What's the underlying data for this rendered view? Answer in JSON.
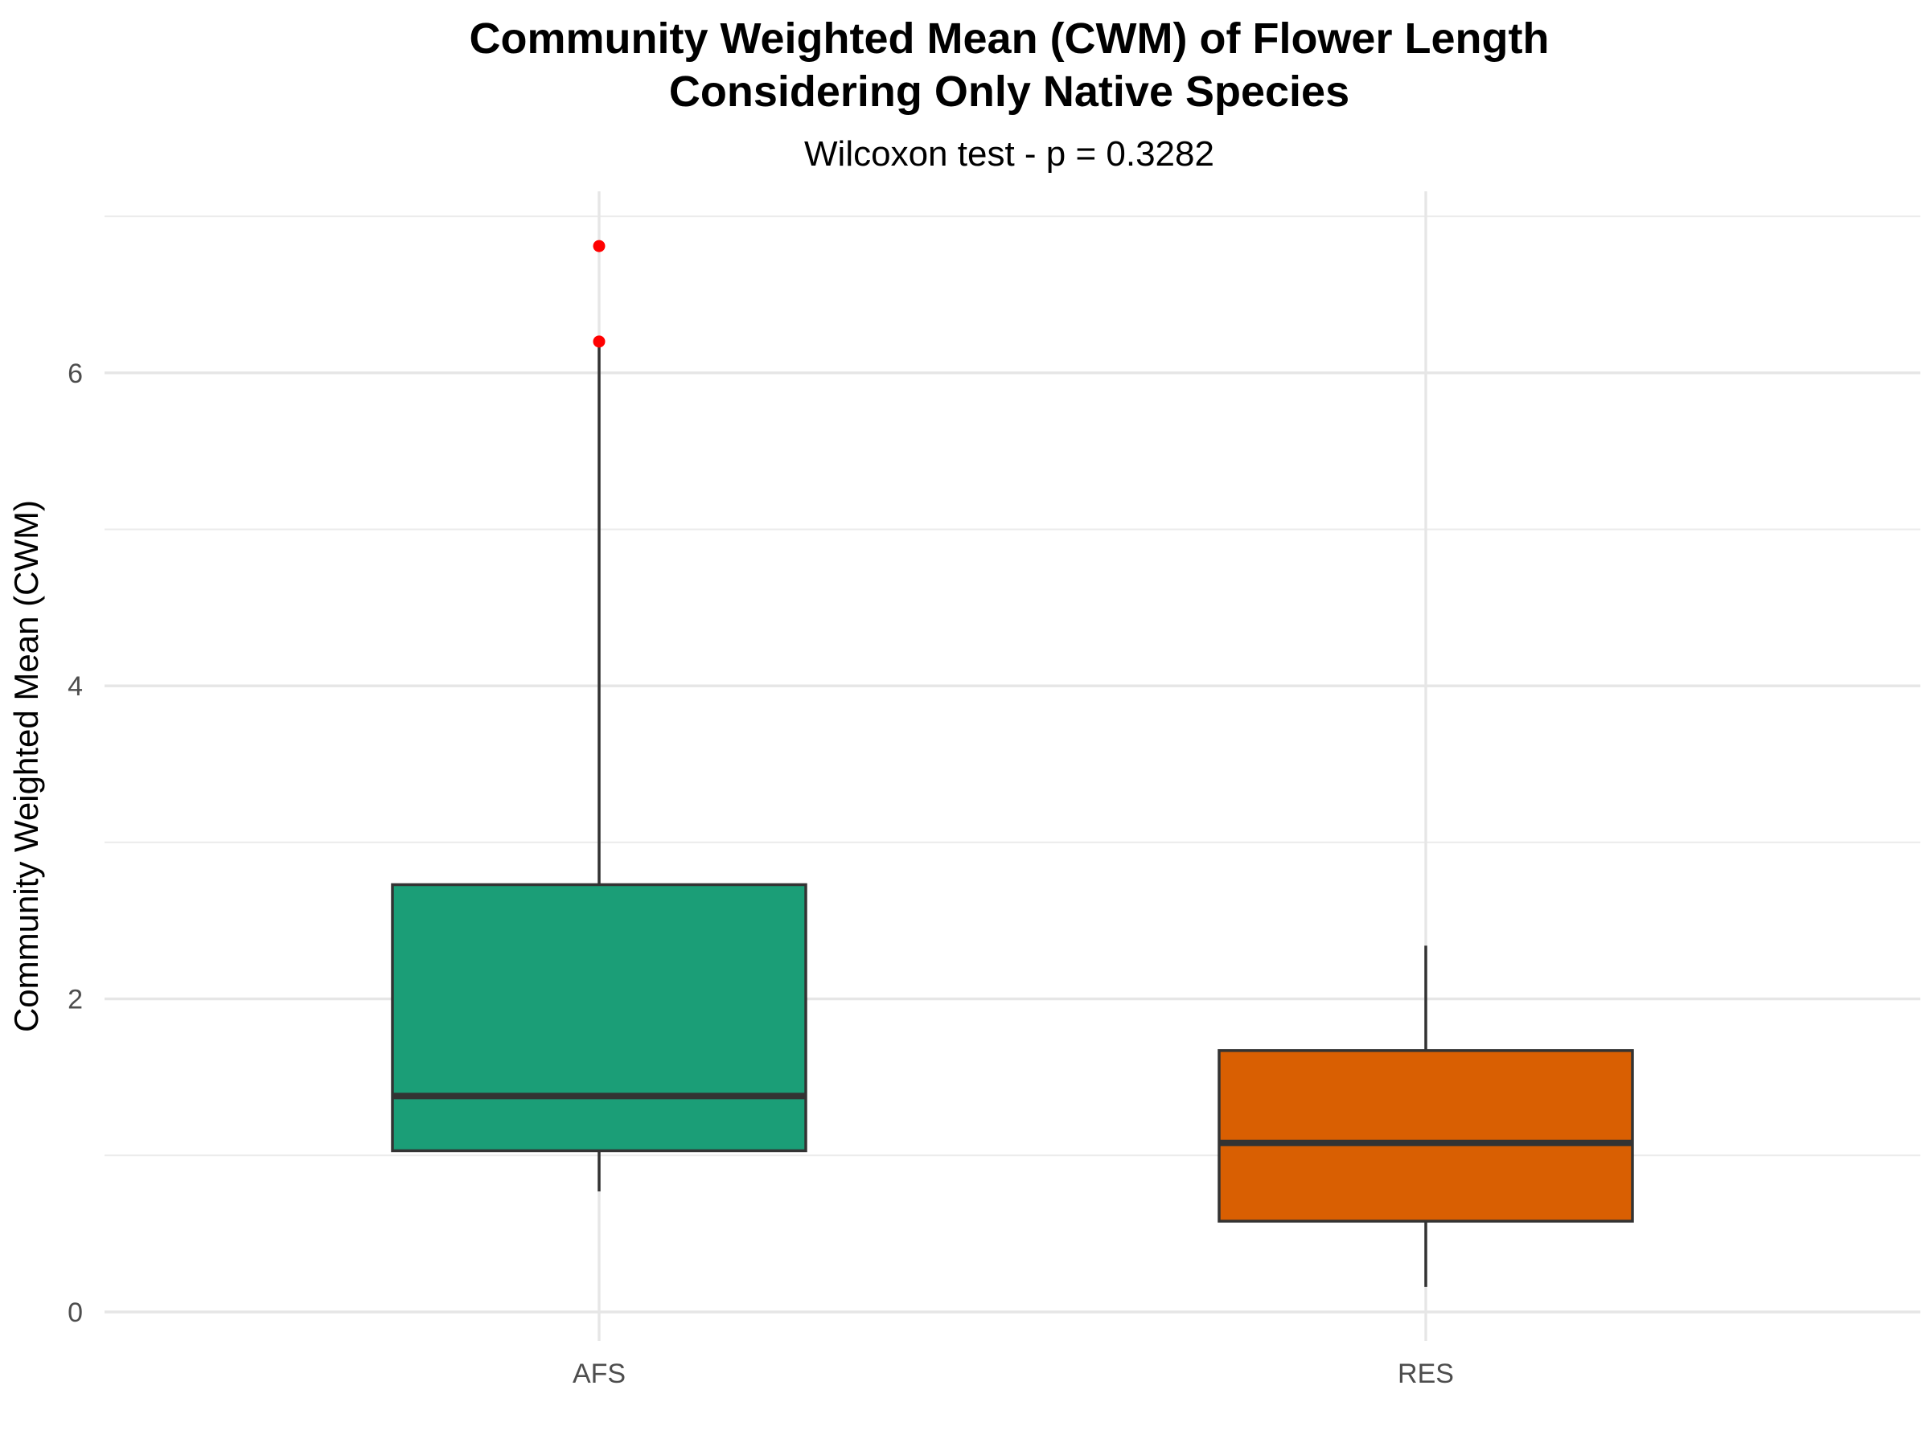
{
  "chart_data": {
    "type": "box",
    "title_line1": "Community Weighted Mean (CWM) of Flower Length",
    "title_line2": "Considering Only Native Species",
    "subtitle": "Wilcoxon test - p = 0.3282",
    "xlabel": "",
    "ylabel": "Community Weighted Mean (CWM)",
    "ylim": [
      -0.2,
      7.0
    ],
    "yticks": [
      0,
      2,
      4,
      6
    ],
    "y_tick_labels": [
      "0",
      "2",
      "4",
      "6"
    ],
    "grid": true,
    "legend": "none",
    "categories": [
      "AFS",
      "RES"
    ],
    "boxes": [
      {
        "category": "AFS",
        "lower_whisker": 0.77,
        "q1": 1.03,
        "median": 1.38,
        "q3": 2.73,
        "upper_whisker": 6.2,
        "outliers": [
          6.2,
          6.81
        ],
        "fill": "#1b9e77"
      },
      {
        "category": "RES",
        "lower_whisker": 0.16,
        "q1": 0.58,
        "median": 1.08,
        "q3": 1.67,
        "upper_whisker": 2.34,
        "outliers": [],
        "fill": "#d95f02"
      }
    ],
    "outlier_color": "#ff0000",
    "line_color": "#333333"
  }
}
